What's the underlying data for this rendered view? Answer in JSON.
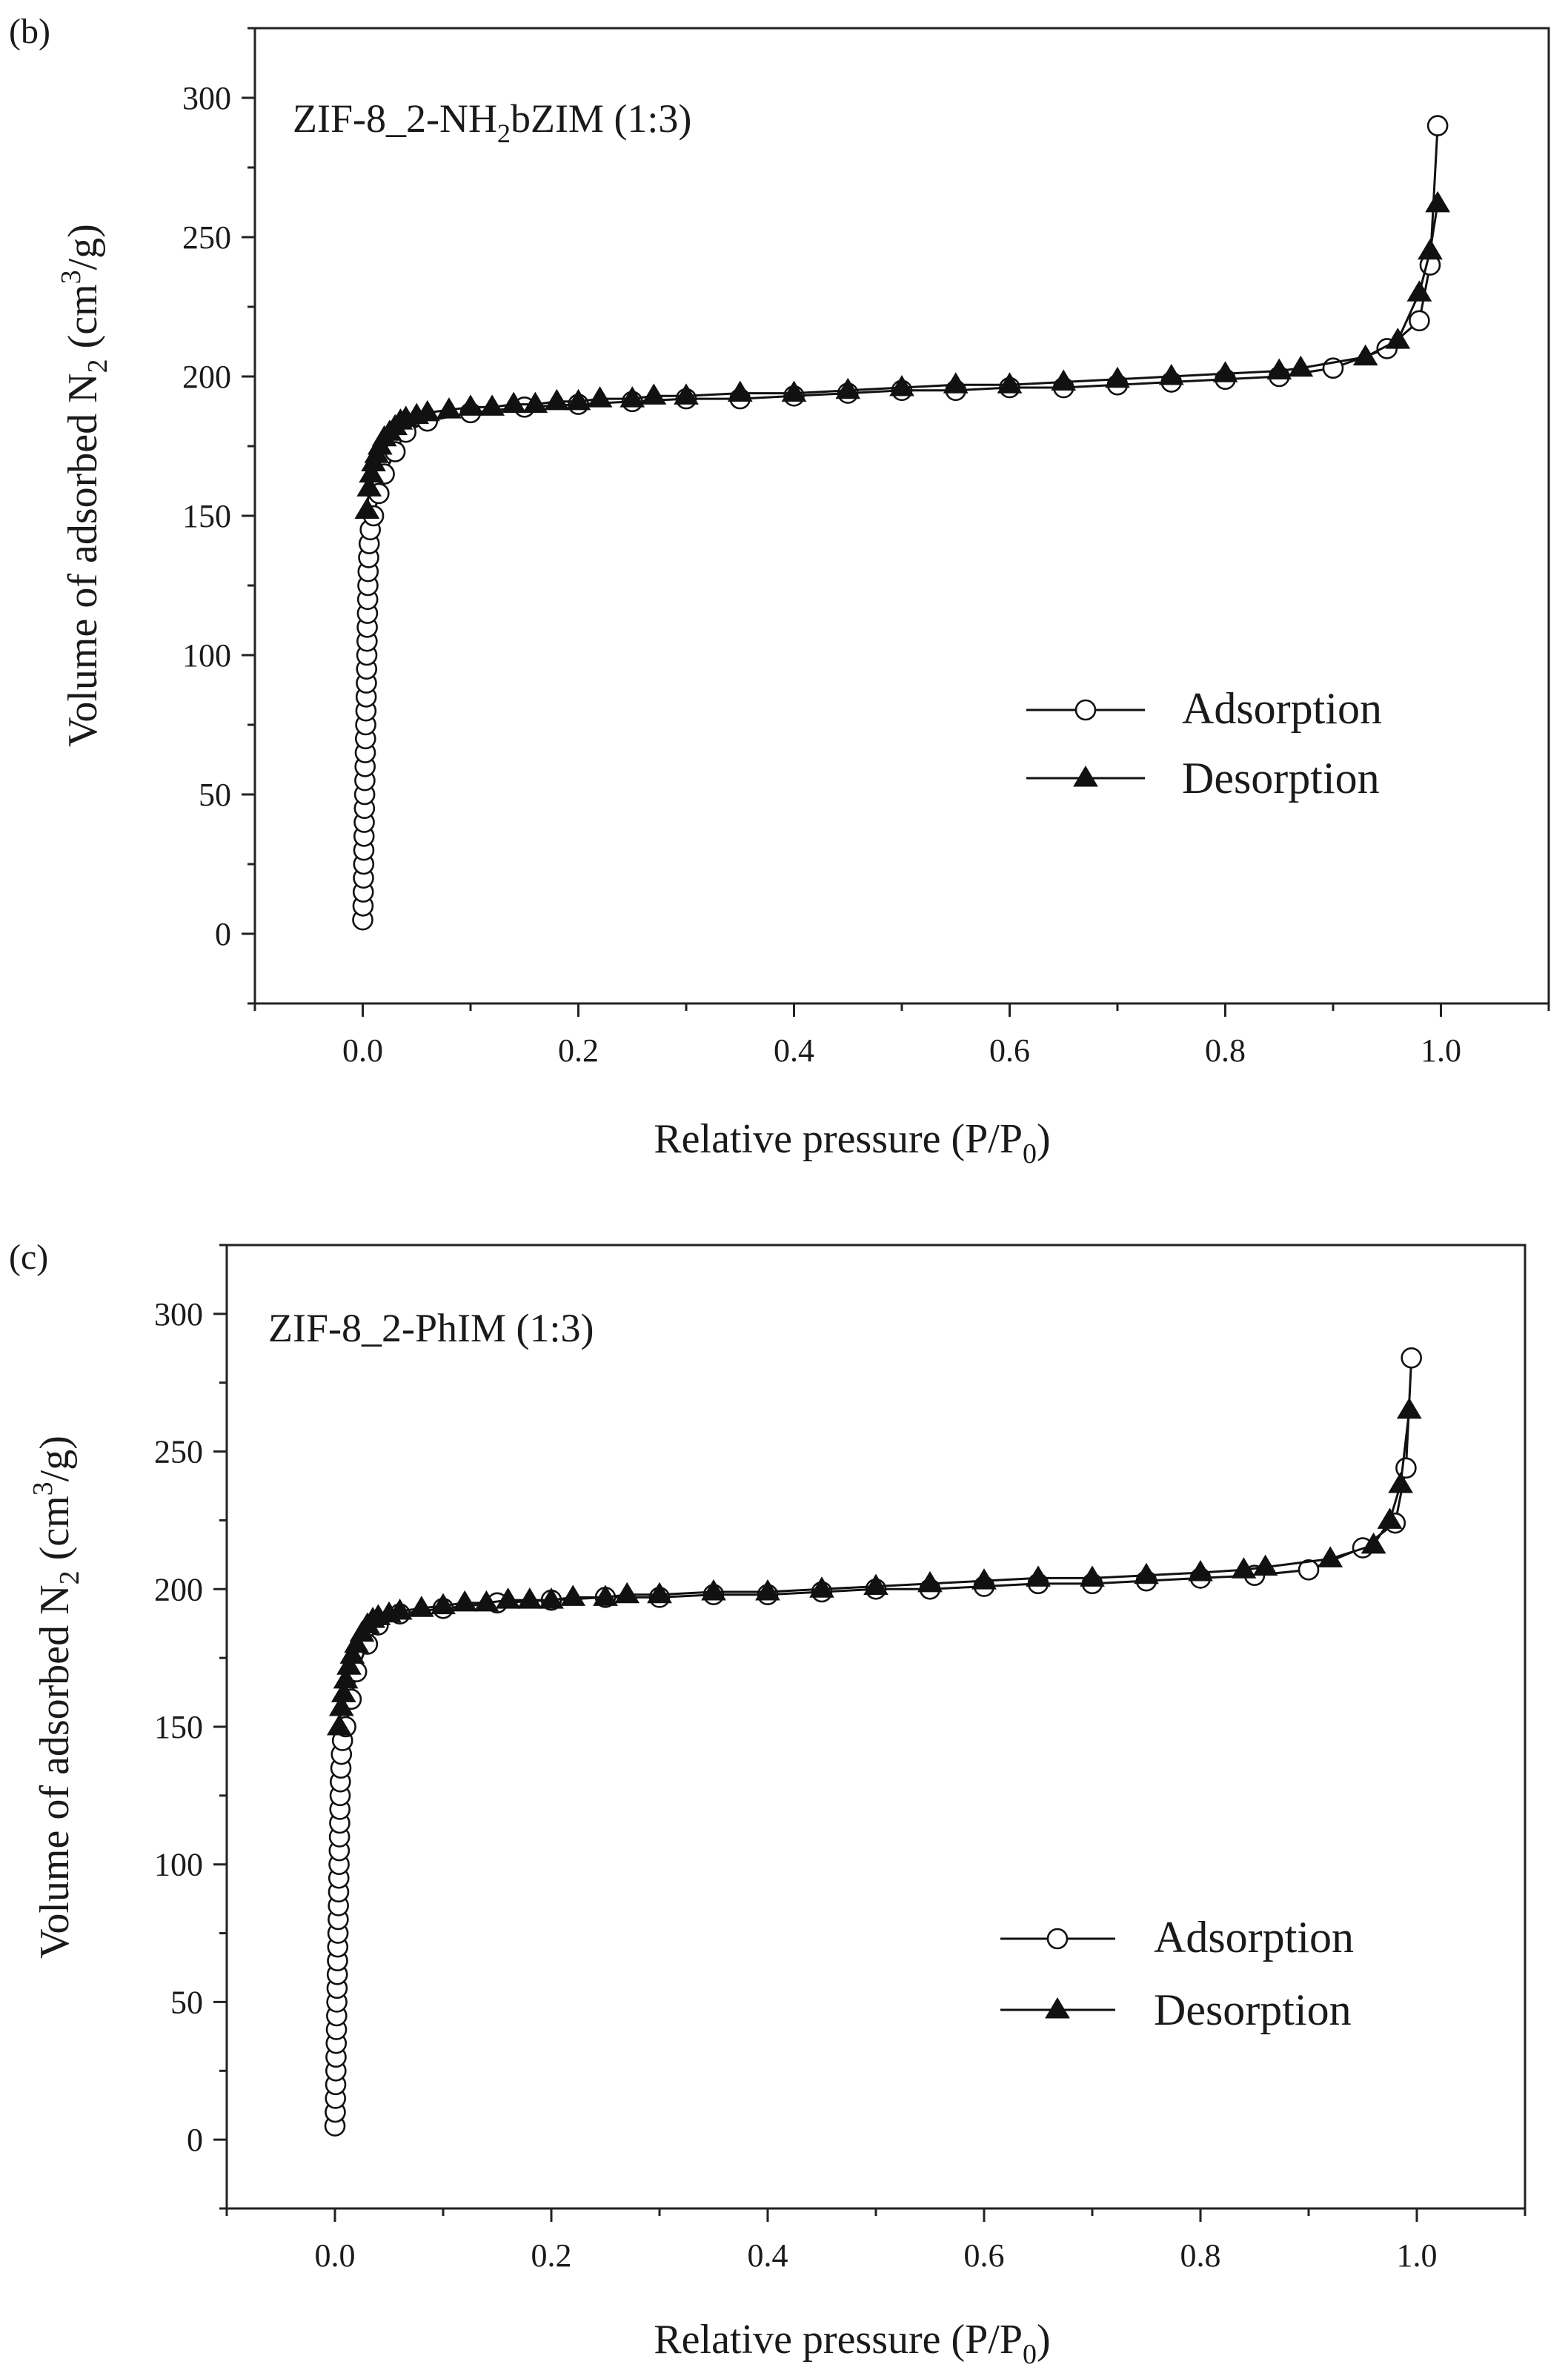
{
  "chart_data": [
    {
      "type": "scatter",
      "panel_label": "(b)",
      "title": "ZIF-8_2-NH",
      "title_sub": "2",
      "title_rest": "bZIM (1:3)",
      "xlabel": "Relative pressure (P/P",
      "xlabel_sub": "0",
      "xlabel_end": ")",
      "ylabel": "Volume of adsorbed N",
      "ylabel_sub": "2",
      "ylabel_mid": " (cm",
      "ylabel_sup": "3",
      "ylabel_end": "/g)",
      "xlim": [
        -0.1,
        1.1
      ],
      "ylim": [
        -25,
        325
      ],
      "x_ticks": [
        0.0,
        0.2,
        0.4,
        0.6,
        0.8,
        1.0
      ],
      "x_tick_labels": [
        "0.0",
        "0.2",
        "0.4",
        "0.6",
        "0.8",
        "1.0"
      ],
      "y_ticks": [
        0,
        50,
        100,
        150,
        200,
        250,
        300
      ],
      "y_tick_labels": [
        "0",
        "50",
        "100",
        "150",
        "200",
        "250",
        "300"
      ],
      "legend": [
        "Adsorption",
        "Desorption"
      ],
      "legend_position": "center-right",
      "series": [
        {
          "name": "Adsorption",
          "marker": "open-circle",
          "x": [
            0.0,
            0.0003,
            0.0005,
            0.0007,
            0.0009,
            0.001,
            0.0012,
            0.0014,
            0.0016,
            0.0018,
            0.002,
            0.0022,
            0.0024,
            0.0026,
            0.0028,
            0.003,
            0.0032,
            0.0034,
            0.0036,
            0.0038,
            0.004,
            0.0042,
            0.0044,
            0.0046,
            0.0048,
            0.005,
            0.0055,
            0.006,
            0.007,
            0.01,
            0.015,
            0.02,
            0.03,
            0.04,
            0.06,
            0.1,
            0.15,
            0.2,
            0.25,
            0.3,
            0.35,
            0.4,
            0.45,
            0.5,
            0.55,
            0.6,
            0.65,
            0.7,
            0.75,
            0.8,
            0.85,
            0.9,
            0.95,
            0.98,
            0.99,
            0.997
          ],
          "y": [
            5,
            10,
            15,
            20,
            25,
            30,
            35,
            40,
            45,
            50,
            55,
            60,
            65,
            70,
            75,
            80,
            85,
            90,
            95,
            100,
            105,
            110,
            115,
            120,
            125,
            130,
            135,
            140,
            145,
            150,
            158,
            165,
            173,
            180,
            184,
            187,
            189,
            190,
            191,
            192,
            192,
            193,
            194,
            195,
            195,
            196,
            196,
            197,
            198,
            199,
            200,
            203,
            210,
            220,
            240,
            290
          ]
        },
        {
          "name": "Desorption",
          "marker": "filled-triangle",
          "x": [
            0.997,
            0.99,
            0.98,
            0.96,
            0.93,
            0.87,
            0.85,
            0.8,
            0.75,
            0.7,
            0.65,
            0.6,
            0.55,
            0.5,
            0.45,
            0.4,
            0.35,
            0.3,
            0.27,
            0.25,
            0.22,
            0.2,
            0.18,
            0.16,
            0.14,
            0.12,
            0.1,
            0.08,
            0.06,
            0.05,
            0.04,
            0.035,
            0.03,
            0.025,
            0.02,
            0.016,
            0.013,
            0.01,
            0.008,
            0.006,
            0.004
          ],
          "y": [
            262,
            245,
            230,
            213,
            207,
            203,
            202,
            201,
            200,
            199,
            198,
            197,
            197,
            196,
            195,
            194,
            194,
            193,
            193,
            192,
            192,
            191,
            191,
            190,
            190,
            189,
            189,
            188,
            187,
            186,
            185,
            184,
            182,
            180,
            178,
            175,
            172,
            169,
            165,
            160,
            152
          ]
        }
      ]
    },
    {
      "type": "scatter",
      "panel_label": "(c)",
      "title": "ZIF-8_2-PhIM (1:3)",
      "title_sub": "",
      "title_rest": "",
      "xlabel": "Relative pressure (P/P",
      "xlabel_sub": "0",
      "xlabel_end": ")",
      "ylabel": "Volume of adsorbed N",
      "ylabel_sub": "2",
      "ylabel_mid": " (cm",
      "ylabel_sup": "3",
      "ylabel_end": "/g)",
      "xlim": [
        -0.1,
        1.1
      ],
      "ylim": [
        -25,
        325
      ],
      "x_ticks": [
        0.0,
        0.2,
        0.4,
        0.6,
        0.8,
        1.0
      ],
      "x_tick_labels": [
        "0.0",
        "0.2",
        "0.4",
        "0.6",
        "0.8",
        "1.0"
      ],
      "y_ticks": [
        0,
        50,
        100,
        150,
        200,
        250,
        300
      ],
      "y_tick_labels": [
        "0",
        "50",
        "100",
        "150",
        "200",
        "250",
        "300"
      ],
      "legend": [
        "Adsorption",
        "Desorption"
      ],
      "legend_position": "center-right",
      "series": [
        {
          "name": "Adsorption",
          "marker": "open-circle",
          "x": [
            0.0,
            0.0003,
            0.0005,
            0.0007,
            0.0009,
            0.001,
            0.0012,
            0.0014,
            0.0016,
            0.0018,
            0.002,
            0.0022,
            0.0024,
            0.0026,
            0.0028,
            0.003,
            0.0032,
            0.0034,
            0.0036,
            0.0038,
            0.004,
            0.0042,
            0.0044,
            0.0046,
            0.0048,
            0.005,
            0.0055,
            0.006,
            0.007,
            0.01,
            0.015,
            0.02,
            0.03,
            0.04,
            0.06,
            0.1,
            0.15,
            0.2,
            0.25,
            0.3,
            0.35,
            0.4,
            0.45,
            0.5,
            0.55,
            0.6,
            0.65,
            0.7,
            0.75,
            0.8,
            0.85,
            0.9,
            0.95,
            0.98,
            0.99,
            0.995
          ],
          "y": [
            5,
            10,
            15,
            20,
            25,
            30,
            35,
            40,
            45,
            50,
            55,
            60,
            65,
            70,
            75,
            80,
            85,
            90,
            95,
            100,
            105,
            110,
            115,
            120,
            125,
            130,
            135,
            140,
            145,
            150,
            160,
            170,
            180,
            187,
            191,
            193,
            195,
            196,
            197,
            197,
            198,
            198,
            199,
            200,
            200,
            201,
            202,
            202,
            203,
            204,
            205,
            207,
            215,
            224,
            244,
            284
          ]
        },
        {
          "name": "Desorption",
          "marker": "filled-triangle",
          "x": [
            0.993,
            0.985,
            0.975,
            0.96,
            0.92,
            0.86,
            0.84,
            0.8,
            0.75,
            0.7,
            0.65,
            0.6,
            0.55,
            0.5,
            0.45,
            0.4,
            0.35,
            0.3,
            0.27,
            0.25,
            0.22,
            0.2,
            0.18,
            0.16,
            0.14,
            0.12,
            0.1,
            0.08,
            0.06,
            0.05,
            0.04,
            0.035,
            0.03,
            0.025,
            0.02,
            0.016,
            0.013,
            0.01,
            0.008,
            0.006,
            0.004
          ],
          "y": [
            265,
            238,
            225,
            216,
            211,
            208,
            207,
            206,
            205,
            204,
            204,
            203,
            202,
            201,
            200,
            199,
            199,
            198,
            198,
            197,
            197,
            196,
            196,
            196,
            195,
            195,
            194,
            193,
            192,
            191,
            190,
            189,
            187,
            184,
            180,
            176,
            172,
            167,
            162,
            157,
            150
          ]
        }
      ]
    }
  ]
}
